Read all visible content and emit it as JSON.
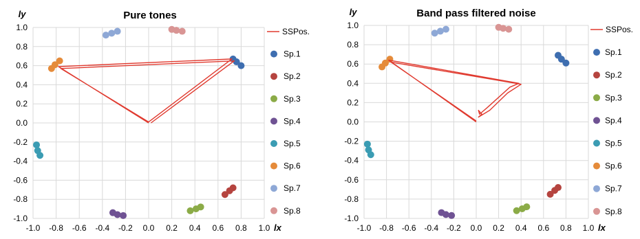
{
  "chart_data": [
    {
      "type": "scatter",
      "title": "Pure tones",
      "xlabel": "lx",
      "ylabel": "ly",
      "xlim": [
        -1.0,
        1.0
      ],
      "ylim": [
        -1.0,
        1.0
      ],
      "x_ticks": [
        "-1.0",
        "-0.8",
        "-0.6",
        "-0.4",
        "-0.2",
        "0.0",
        "0.2",
        "0.4",
        "0.6",
        "0.8",
        "1.0"
      ],
      "y_ticks": [
        "1.0",
        "0.8",
        "0.6",
        "0.4",
        "0.2",
        "0.0",
        "-0.2",
        "-0.4",
        "-0.6",
        "-0.8",
        "-1.0"
      ],
      "grid": true,
      "legend_position": "right",
      "line_series": {
        "name": "SSPos.",
        "color": "#e03a2f",
        "x": [
          0.0,
          -0.78,
          0.72,
          0.0,
          -0.76,
          0.74,
          0.02
        ],
        "y": [
          0.0,
          0.59,
          0.67,
          0.01,
          0.57,
          0.65,
          0.0
        ]
      },
      "series": [
        {
          "name": "Sp.1",
          "color": "#3e6eb0",
          "x": [
            0.73,
            0.76,
            0.8
          ],
          "y": [
            0.67,
            0.64,
            0.6
          ]
        },
        {
          "name": "Sp.2",
          "color": "#b5443f",
          "x": [
            0.66,
            0.7,
            0.73
          ],
          "y": [
            -0.75,
            -0.71,
            -0.68
          ]
        },
        {
          "name": "Sp.3",
          "color": "#8bab47",
          "x": [
            0.36,
            0.41,
            0.45
          ],
          "y": [
            -0.92,
            -0.9,
            -0.88
          ]
        },
        {
          "name": "Sp.4",
          "color": "#6f5293",
          "x": [
            -0.31,
            -0.27,
            -0.22
          ],
          "y": [
            -0.94,
            -0.96,
            -0.97
          ]
        },
        {
          "name": "Sp.5",
          "color": "#3b9cb3",
          "x": [
            -0.97,
            -0.96,
            -0.94
          ],
          "y": [
            -0.23,
            -0.29,
            -0.34
          ]
        },
        {
          "name": "Sp.6",
          "color": "#e58b3a",
          "x": [
            -0.84,
            -0.81,
            -0.77
          ],
          "y": [
            0.57,
            0.61,
            0.65
          ]
        },
        {
          "name": "Sp.7",
          "color": "#8ea8d6",
          "x": [
            -0.37,
            -0.32,
            -0.27
          ],
          "y": [
            0.92,
            0.94,
            0.96
          ]
        },
        {
          "name": "Sp.8",
          "color": "#d99594",
          "x": [
            0.2,
            0.24,
            0.29
          ],
          "y": [
            0.98,
            0.97,
            0.96
          ]
        }
      ]
    },
    {
      "type": "scatter",
      "title": "Band pass filtered noise",
      "xlabel": "lx",
      "ylabel": "ly",
      "xlim": [
        -1.0,
        1.0
      ],
      "ylim": [
        -1.0,
        1.0
      ],
      "x_ticks": [
        "-1.0",
        "-0.8",
        "-0.6",
        "-0.4",
        "-0.2",
        "0.0",
        "0.2",
        "0.4",
        "0.6",
        "0.8",
        "1.0"
      ],
      "y_ticks": [
        "1.0",
        "0.8",
        "0.6",
        "0.4",
        "0.2",
        "0.0",
        "-0.2",
        "-0.4",
        "-0.6",
        "-0.8",
        "-1.0"
      ],
      "grid": true,
      "legend_position": "right",
      "line_series": {
        "name": "SSPos.",
        "color": "#e03a2f",
        "x": [
          0.0,
          -0.78,
          0.38,
          0.3,
          0.1,
          0.03,
          0.02,
          0.05,
          0.02,
          0.12,
          0.28,
          0.4,
          -0.76,
          0.0
        ],
        "y": [
          0.0,
          0.64,
          0.4,
          0.36,
          0.15,
          0.08,
          0.12,
          0.08,
          0.05,
          0.12,
          0.3,
          0.39,
          0.62,
          0.01
        ]
      },
      "series": [
        {
          "name": "Sp.1",
          "color": "#3e6eb0",
          "x": [
            0.73,
            0.76,
            0.8
          ],
          "y": [
            0.69,
            0.65,
            0.61
          ]
        },
        {
          "name": "Sp.2",
          "color": "#b5443f",
          "x": [
            0.66,
            0.7,
            0.73
          ],
          "y": [
            -0.75,
            -0.71,
            -0.68
          ]
        },
        {
          "name": "Sp.3",
          "color": "#8bab47",
          "x": [
            0.36,
            0.41,
            0.45
          ],
          "y": [
            -0.92,
            -0.9,
            -0.88
          ]
        },
        {
          "name": "Sp.4",
          "color": "#6f5293",
          "x": [
            -0.31,
            -0.27,
            -0.22
          ],
          "y": [
            -0.94,
            -0.96,
            -0.97
          ]
        },
        {
          "name": "Sp.5",
          "color": "#3b9cb3",
          "x": [
            -0.97,
            -0.96,
            -0.94
          ],
          "y": [
            -0.23,
            -0.29,
            -0.34
          ]
        },
        {
          "name": "Sp.6",
          "color": "#e58b3a",
          "x": [
            -0.84,
            -0.81,
            -0.77
          ],
          "y": [
            0.57,
            0.61,
            0.65
          ]
        },
        {
          "name": "Sp.7",
          "color": "#8ea8d6",
          "x": [
            -0.37,
            -0.32,
            -0.27
          ],
          "y": [
            0.92,
            0.94,
            0.96
          ]
        },
        {
          "name": "Sp.8",
          "color": "#d99594",
          "x": [
            0.2,
            0.24,
            0.29
          ],
          "y": [
            0.98,
            0.97,
            0.96
          ]
        }
      ]
    }
  ]
}
